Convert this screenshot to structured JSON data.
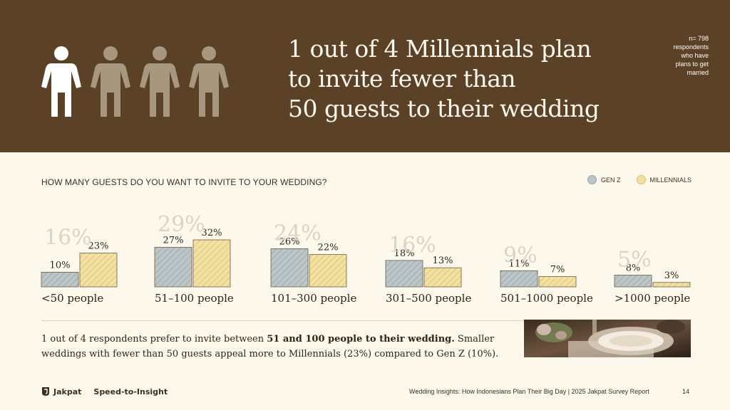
{
  "header": {
    "headline_lines": [
      "1 out of 4 Millennials plan",
      "to invite fewer than",
      "50 guests to their wedding"
    ],
    "sample_note_lines": [
      "n= 798",
      "respondents",
      "who have",
      "plans to get",
      "married"
    ],
    "people_icons": [
      "person-icon",
      "person-icon",
      "person-icon",
      "person-icon"
    ],
    "highlight_color": "#ffffff",
    "muted_color": "#a7977e"
  },
  "chart_data": {
    "type": "bar",
    "title": "HOW MANY GUESTS DO YOU WANT TO INVITE TO YOUR WEDDING?",
    "categories": [
      "<50 people",
      "51–100 people",
      "101–300 people",
      "301–500 people",
      "501–1000 people",
      ">1000 people"
    ],
    "totals": [
      "16%",
      "29%",
      "24%",
      "16%",
      "9%",
      "5%"
    ],
    "series": [
      {
        "name": "GEN Z",
        "values": [
          10,
          27,
          26,
          18,
          11,
          8
        ],
        "labels": [
          "10%",
          "27%",
          "26%",
          "18%",
          "11%",
          "8%"
        ],
        "color": "#bcc5c7",
        "hatch": "#97a4a8"
      },
      {
        "name": "MILLENNIALS",
        "values": [
          23,
          32,
          22,
          13,
          7,
          3
        ],
        "labels": [
          "23%",
          "32%",
          "22%",
          "13%",
          "7%",
          "3%"
        ],
        "color": "#f3e1a1",
        "hatch": "#d9bf73"
      }
    ],
    "ylim": [
      0,
      32
    ],
    "legend_position": "top-right",
    "grid": false
  },
  "summary": {
    "part1": "1 out of 4 respondents prefer to invite between ",
    "bold": "51 and 100 people to their wedding.",
    "part2": " Smaller weddings with fewer than 50 guests appeal more to Millennials (23%) compared to Gen Z (10%)."
  },
  "footer": {
    "brand": "Jakpat",
    "tagline": "Speed-to-Insight",
    "report": "Wedding Insights: How Indonesians Plan Their Big Day | 2025 Jakpat Survey Report",
    "page": "14"
  },
  "colors": {
    "header_bg": "#5b4227",
    "page_bg": "#fcf9ec",
    "total_label": "#dcd3c2",
    "bar_outline": "#6b5a45"
  }
}
